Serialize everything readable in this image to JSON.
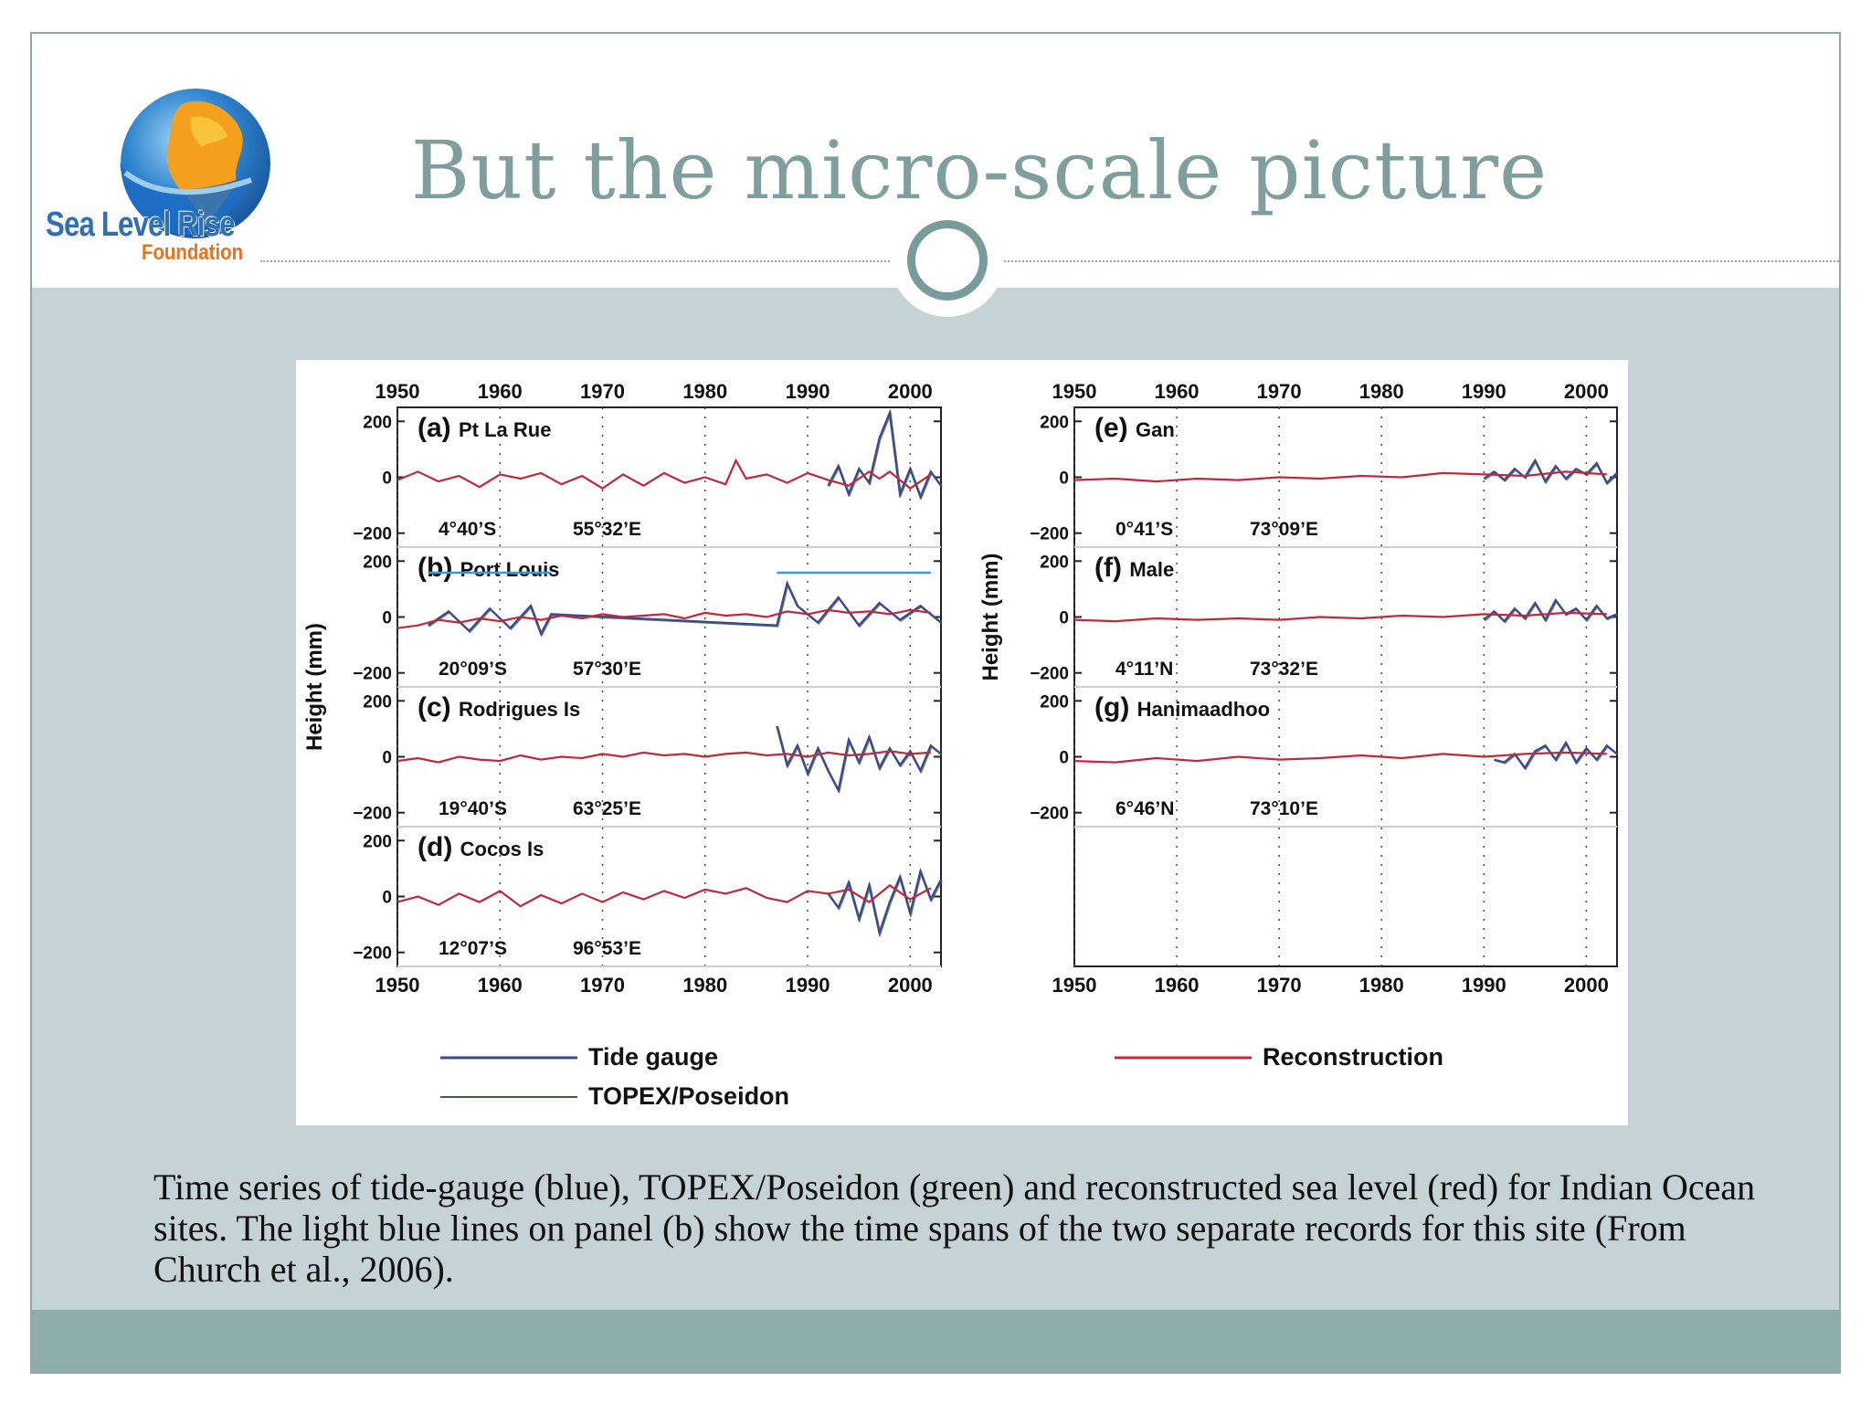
{
  "slide": {
    "title": "But the micro-scale picture",
    "caption": "Time series of tide-gauge (blue), TOPEX/Poseidon (green) and reconstructed sea level (red) for Indian Ocean sites. The light blue lines on panel (b) show the time spans of the two separate records for this site (From Church et al., 2006).",
    "logo": {
      "line1": "Sea Level Rise",
      "line2": "Foundation"
    }
  },
  "colors": {
    "tide_gauge": "#3a4a8a",
    "topex": "#3f5d3a",
    "reconstruction": "#c0283c",
    "span_lines": "#3a9ad9",
    "accent": "#809e9d"
  },
  "chart_data": {
    "type": "line",
    "x_range": [
      1950,
      2003
    ],
    "x_ticks": [
      "1950",
      "1960",
      "1970",
      "1980",
      "1990",
      "2000"
    ],
    "y_range": [
      -250,
      250
    ],
    "y_ticks": [
      "200",
      "0",
      "−200"
    ],
    "ylabel": "Height (mm)",
    "legend": {
      "placement": "bottom",
      "entries": [
        {
          "name": "Tide gauge",
          "color": "#3a4a8a"
        },
        {
          "name": "TOPEX/Poseidon",
          "color": "#3f5d3a"
        },
        {
          "name": "Reconstruction",
          "color": "#c0283c"
        }
      ]
    },
    "columns": [
      {
        "panels": [
          {
            "id": "(a)",
            "site": "Pt La Rue",
            "lat": "4°40’S",
            "lon": "55°32’E",
            "recon_x": [
              1950,
              1952,
              1954,
              1956,
              1958,
              1960,
              1962,
              1964,
              1966,
              1968,
              1970,
              1972,
              1974,
              1976,
              1978,
              1980,
              1982,
              1983,
              1984,
              1986,
              1988,
              1990,
              1992,
              1994,
              1996,
              1997,
              1998,
              2000,
              2002
            ],
            "recon_y": [
              -10,
              20,
              -15,
              5,
              -35,
              10,
              -5,
              15,
              -25,
              5,
              -40,
              10,
              -30,
              15,
              -20,
              0,
              -25,
              60,
              -5,
              10,
              -20,
              15,
              -10,
              -30,
              20,
              -5,
              20,
              -40,
              10
            ],
            "gauge_start": 1992,
            "gauge_x": [
              1992,
              1993,
              1994,
              1995,
              1996,
              1997,
              1998,
              1999,
              2000,
              2001,
              2002,
              2003
            ],
            "gauge_y": [
              -30,
              40,
              -60,
              30,
              -20,
              140,
              230,
              -60,
              30,
              -70,
              20,
              -30
            ]
          },
          {
            "id": "(b)",
            "site": "Port Louis",
            "lat": "20°09’S",
            "lon": "57°30’E",
            "recon_x": [
              1950,
              1952,
              1954,
              1956,
              1958,
              1960,
              1962,
              1964,
              1966,
              1968,
              1970,
              1972,
              1974,
              1976,
              1978,
              1980,
              1982,
              1984,
              1986,
              1988,
              1990,
              1992,
              1994,
              1996,
              1998,
              2000,
              2002
            ],
            "recon_y": [
              -40,
              -30,
              -10,
              -20,
              -5,
              -15,
              0,
              -10,
              5,
              -5,
              10,
              0,
              5,
              10,
              -5,
              15,
              5,
              10,
              0,
              20,
              10,
              25,
              15,
              20,
              10,
              25,
              15
            ],
            "gauge_start": 1953,
            "gauge_x": [
              1953,
              1955,
              1957,
              1959,
              1961,
              1963,
              1964,
              1965,
              1987,
              1988,
              1989,
              1991,
              1993,
              1995,
              1997,
              1999,
              2001,
              2003
            ],
            "gauge_y": [
              -30,
              20,
              -50,
              30,
              -40,
              40,
              -60,
              10,
              -30,
              120,
              40,
              -20,
              70,
              -30,
              50,
              -10,
              40,
              -20
            ],
            "span_lines": [
              [
                1953,
                1965
              ],
              [
                1987,
                2002
              ]
            ]
          },
          {
            "id": "(c)",
            "site": "Rodrigues Is",
            "lat": "19°40’S",
            "lon": "63°25’E",
            "recon_x": [
              1950,
              1952,
              1954,
              1956,
              1958,
              1960,
              1962,
              1964,
              1966,
              1968,
              1970,
              1972,
              1974,
              1976,
              1978,
              1980,
              1982,
              1984,
              1986,
              1988,
              1990,
              1992,
              1994,
              1996,
              1998,
              2000,
              2002
            ],
            "recon_y": [
              -15,
              -5,
              -20,
              0,
              -10,
              -15,
              5,
              -10,
              0,
              -5,
              10,
              0,
              15,
              5,
              10,
              0,
              10,
              15,
              5,
              10,
              0,
              15,
              5,
              10,
              20,
              10,
              15
            ],
            "gauge_start": 1987,
            "gauge_x": [
              1987,
              1988,
              1989,
              1990,
              1991,
              1992,
              1993,
              1994,
              1995,
              1996,
              1997,
              1998,
              1999,
              2000,
              2001,
              2002,
              2003
            ],
            "gauge_y": [
              110,
              -30,
              40,
              -60,
              30,
              -50,
              -120,
              60,
              -20,
              70,
              -40,
              30,
              -30,
              20,
              -50,
              40,
              10
            ]
          },
          {
            "id": "(d)",
            "site": "Cocos Is",
            "lat": "12°07’S",
            "lon": "96°53’E",
            "recon_x": [
              1950,
              1952,
              1954,
              1956,
              1958,
              1960,
              1962,
              1964,
              1966,
              1968,
              1970,
              1972,
              1974,
              1976,
              1978,
              1980,
              1982,
              1984,
              1986,
              1988,
              1990,
              1992,
              1994,
              1996,
              1998,
              2000,
              2002
            ],
            "recon_y": [
              -20,
              0,
              -30,
              10,
              -20,
              20,
              -35,
              5,
              -25,
              10,
              -20,
              15,
              -10,
              20,
              -5,
              25,
              10,
              30,
              -5,
              -20,
              20,
              10,
              25,
              -20,
              40,
              -10,
              30
            ],
            "gauge_start": 1992,
            "gauge_x": [
              1992,
              1993,
              1994,
              1995,
              1996,
              1997,
              1998,
              1999,
              2000,
              2001,
              2002,
              2003
            ],
            "gauge_y": [
              10,
              -40,
              50,
              -80,
              40,
              -130,
              -20,
              70,
              -60,
              90,
              -10,
              60
            ]
          }
        ]
      },
      {
        "panels": [
          {
            "id": "(e)",
            "site": "Gan",
            "lat": "0°41’S",
            "lon": "73°09’E",
            "recon_x": [
              1950,
              1954,
              1958,
              1962,
              1966,
              1970,
              1974,
              1978,
              1982,
              1986,
              1990,
              1994,
              1998,
              2002
            ],
            "recon_y": [
              -10,
              -5,
              -15,
              -5,
              -10,
              0,
              -5,
              5,
              0,
              15,
              10,
              5,
              20,
              10
            ],
            "gauge_start": 1990,
            "gauge_x": [
              1990,
              1991,
              1992,
              1993,
              1994,
              1995,
              1996,
              1997,
              1998,
              1999,
              2000,
              2001,
              2002,
              2003
            ],
            "gauge_y": [
              -5,
              20,
              -10,
              30,
              0,
              60,
              -15,
              40,
              -5,
              30,
              10,
              50,
              -20,
              15
            ]
          },
          {
            "id": "(f)",
            "site": "Male",
            "lat": "4°11’N",
            "lon": "73°32’E",
            "recon_x": [
              1950,
              1954,
              1958,
              1962,
              1966,
              1970,
              1974,
              1978,
              1982,
              1986,
              1990,
              1994,
              1998,
              2002
            ],
            "recon_y": [
              -10,
              -15,
              -5,
              -10,
              -5,
              -10,
              0,
              -5,
              5,
              0,
              10,
              5,
              15,
              10
            ],
            "gauge_start": 1990,
            "gauge_x": [
              1990,
              1991,
              1992,
              1993,
              1994,
              1995,
              1996,
              1997,
              1998,
              1999,
              2000,
              2001,
              2002,
              2003
            ],
            "gauge_y": [
              -10,
              20,
              -15,
              30,
              -5,
              50,
              -10,
              60,
              10,
              30,
              -10,
              40,
              -5,
              10
            ]
          },
          {
            "id": "(g)",
            "site": "Hanimaadhoo",
            "lat": "6°46’N",
            "lon": "73°10’E",
            "recon_x": [
              1950,
              1954,
              1958,
              1962,
              1966,
              1970,
              1974,
              1978,
              1982,
              1986,
              1990,
              1994,
              1998,
              2002
            ],
            "recon_y": [
              -15,
              -20,
              -5,
              -15,
              0,
              -10,
              -5,
              5,
              -5,
              10,
              0,
              10,
              15,
              10
            ],
            "gauge_start": 1991,
            "gauge_x": [
              1991,
              1992,
              1993,
              1994,
              1995,
              1996,
              1997,
              1998,
              1999,
              2000,
              2001,
              2002,
              2003
            ],
            "gauge_y": [
              -10,
              -20,
              10,
              -40,
              20,
              40,
              -10,
              50,
              -20,
              30,
              -10,
              40,
              10
            ]
          }
        ]
      }
    ]
  }
}
